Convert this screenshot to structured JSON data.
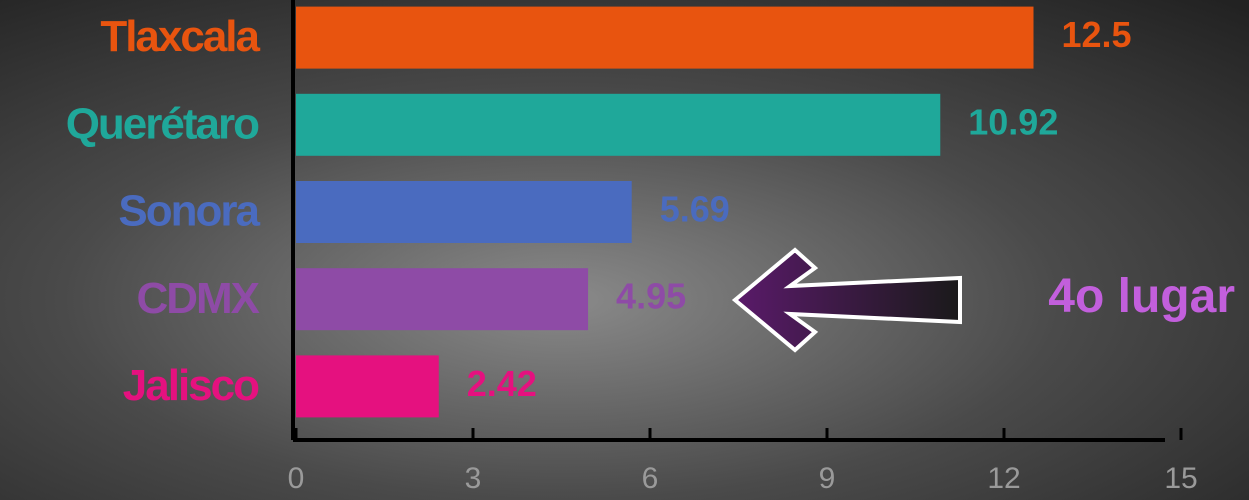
{
  "chart_data": {
    "type": "bar",
    "orientation": "horizontal",
    "categories": [
      "Tlaxcala",
      "Querétaro",
      "Sonora",
      "CDMX",
      "Jalisco"
    ],
    "values": [
      12.5,
      10.92,
      5.69,
      4.95,
      2.42
    ],
    "colors": [
      "#e8540f",
      "#1fa89a",
      "#4a6bbf",
      "#8e4ba6",
      "#e5117f"
    ],
    "xlim": [
      0,
      15
    ],
    "xticks": [
      0,
      3,
      6,
      9,
      12,
      15
    ],
    "annotation": {
      "text": "4o lugar",
      "category_index": 3,
      "color": "#c25fdc"
    }
  }
}
